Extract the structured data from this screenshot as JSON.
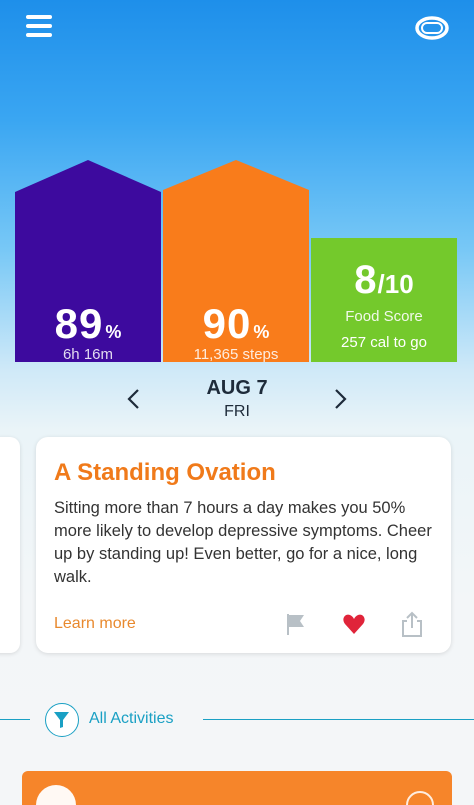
{
  "header": {
    "menu_icon": "hamburger-menu-icon",
    "device_icon": "fitness-band-icon"
  },
  "summary": {
    "sleep": {
      "value": "89",
      "unit": "%",
      "detail": "6h 16m",
      "color": "#3d0a9e",
      "progress": 0.89
    },
    "steps": {
      "value": "90",
      "unit": "%",
      "detail": "11,365 steps",
      "color": "#f97c1b",
      "progress": 0.9
    },
    "food": {
      "value": "8",
      "denominator": "/10",
      "label": "Food Score",
      "detail": "257 cal to go",
      "color": "#74c92c",
      "progress": 0.8
    }
  },
  "date": {
    "day": "AUG 7",
    "weekday": "FRI"
  },
  "insight_card": {
    "title": "A Standing Ovation",
    "body": "Sitting more than 7 hours a day makes you 50% more likely to develop depressive symptoms. Cheer up by standing up! Even better, go for a nice, long walk.",
    "learn_more": "Learn more",
    "accent": "#f07a1a",
    "heart_color": "#e0243a"
  },
  "activities": {
    "label": "All Activities",
    "accent": "#1aa0c4"
  },
  "bottom_card": {
    "color": "#f6852a"
  }
}
